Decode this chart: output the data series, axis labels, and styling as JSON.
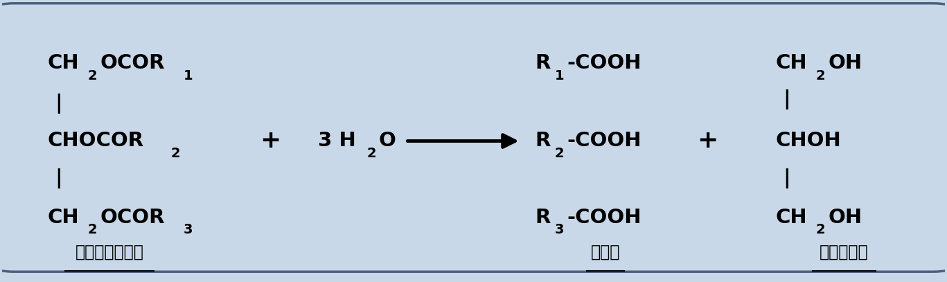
{
  "bg_color": "#c8d8e8",
  "border_color": "#4a6080",
  "text_color": "#000000",
  "fig_width": 13.67,
  "fig_height": 4.07,
  "dpi": 100,
  "font_size_main": 21,
  "font_size_sub": 14,
  "font_size_label": 17,
  "font_size_plus": 26,
  "font_weight": "bold",
  "left_label": "トリグリセリド",
  "mid_label": "脂肪酸",
  "right_label": "グリセリン"
}
